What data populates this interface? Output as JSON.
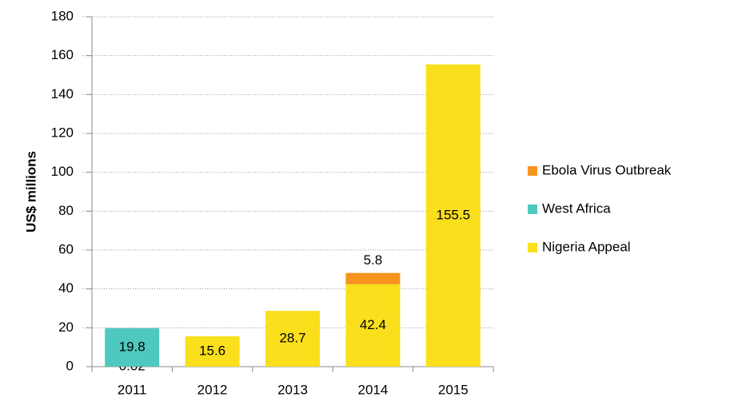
{
  "chart_data": {
    "type": "stacked_bar",
    "y_label": "US$ millions",
    "categories": [
      "2011",
      "2012",
      "2013",
      "2014",
      "2015"
    ],
    "series": [
      {
        "name": "Nigeria Appeal",
        "color": "#f9df1c",
        "values": [
          0.02,
          15.6,
          28.7,
          42.4,
          155.5
        ]
      },
      {
        "name": "West Africa",
        "color": "#4fc9c0",
        "values": [
          19.8,
          null,
          null,
          null,
          null
        ]
      },
      {
        "name": "Ebola Virus Outbreak",
        "color": "#f7941d",
        "values": [
          null,
          null,
          null,
          5.8,
          null
        ]
      }
    ],
    "ylim": [
      0,
      180
    ],
    "yticks": [
      0,
      20,
      40,
      60,
      80,
      100,
      120,
      140,
      160,
      180
    ],
    "grid": true,
    "legend": "right"
  }
}
